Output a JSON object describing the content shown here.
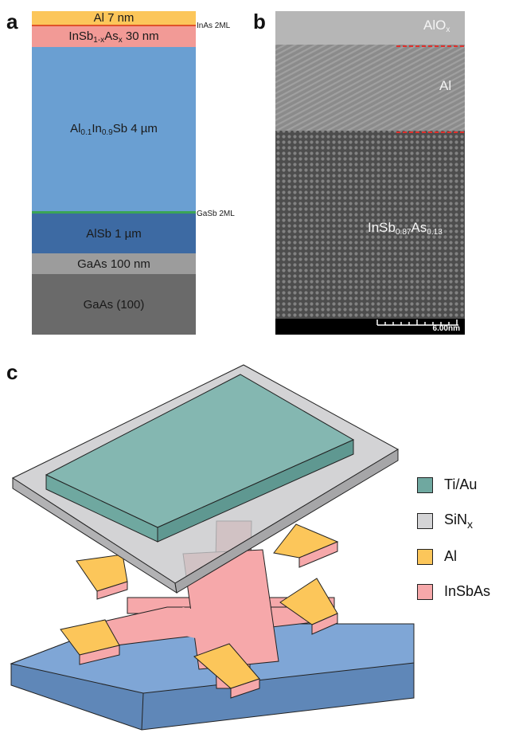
{
  "panels": {
    "a": "a",
    "b": "b",
    "c": "c"
  },
  "stack": {
    "al": "Al 7 nm",
    "insbas_main": "InSb",
    "insbas_sub1": "1-x",
    "insbas_mid": "As",
    "insbas_sub2": "x",
    "insbas_tail": " 30 nm",
    "alinsb_al": "Al",
    "alinsb_sub1": "0.1",
    "alinsb_in": "In",
    "alinsb_sub2": "0.9",
    "alinsb_tail": "Sb 4 µm",
    "alsb": "AlSb 1 µm",
    "gaas_buffer": "GaAs 100 nm",
    "gaas_sub": "GaAs (100)",
    "inas_label": "InAs 2ML",
    "gasb_label": "GaSb 2ML"
  },
  "tem": {
    "alox_main": "AlO",
    "alox_sub": "x",
    "al": "Al",
    "insbas_main": "InSb",
    "insbas_sub1": "0.87",
    "insbas_mid": "As",
    "insbas_sub2": "0.13",
    "scale": "6.00nm"
  },
  "legend": [
    {
      "main": "Ti/Au",
      "sub": "",
      "color": "#6fa8a0"
    },
    {
      "main": "SiN",
      "sub": "x",
      "color": "#d4d4d6"
    },
    {
      "main": "Al",
      "sub": "",
      "color": "#fcc65a"
    },
    {
      "main": "InSbAs",
      "sub": "",
      "color": "#f6a8aa"
    }
  ],
  "colors": {
    "al": "#fcc65a",
    "insbas": "#f29a96",
    "alinsb": "#6a9fd2",
    "alsb": "#3d6aa3",
    "gaas_buffer": "#9c9c9c",
    "gaas_sub": "#6a6a6a",
    "inas": "#e0522a",
    "gasb": "#3ba556"
  }
}
